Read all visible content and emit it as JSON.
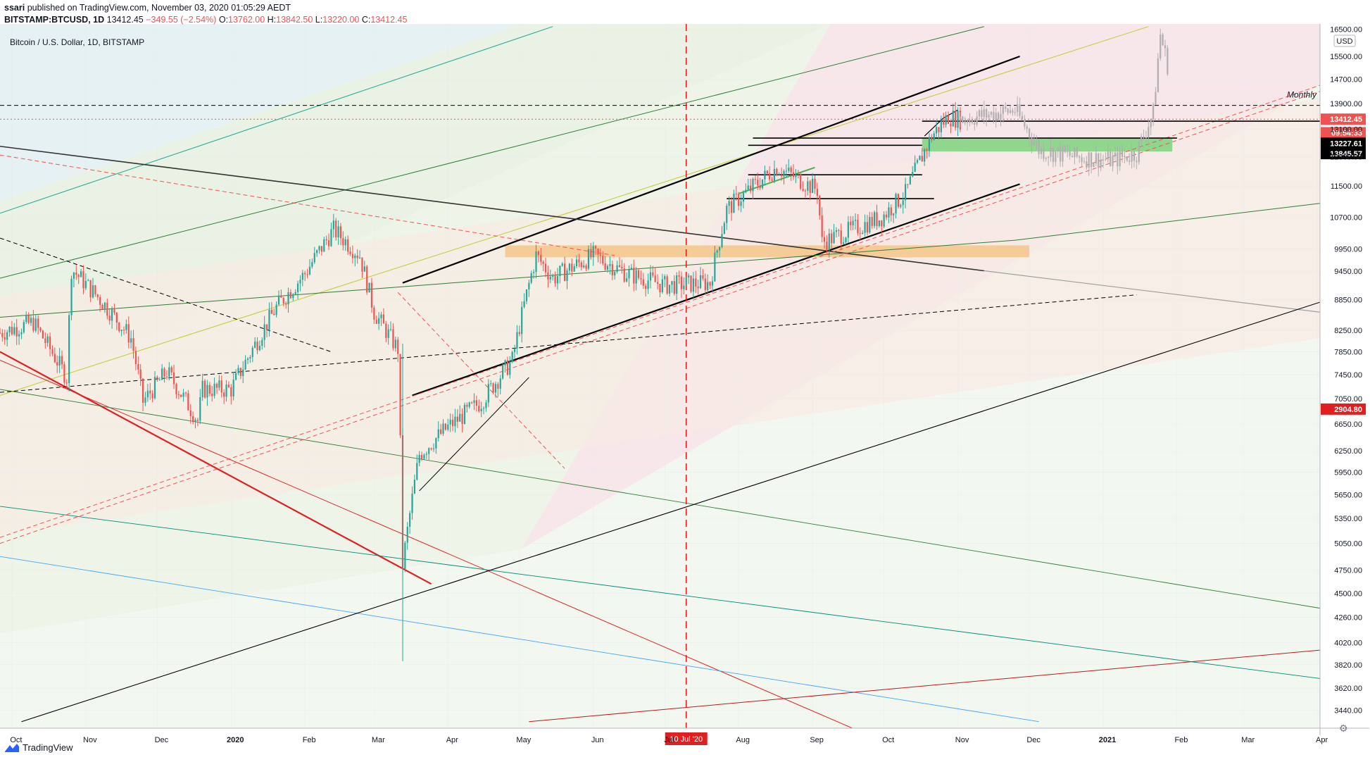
{
  "header": {
    "user": "ssari",
    "published": "published on TradingView.com, November 03, 2020 01:05:29 AEDT",
    "symbol": "BITSTAMP:BTCUSD, 1D",
    "last": "13412.45",
    "change": "−349.55 (−2.54%)",
    "o_label": "O:",
    "o": "13762.00",
    "h_label": "H:",
    "h": "13842.50",
    "l_label": "L:",
    "l": "13220.00",
    "c_label": "C:",
    "c": "13412.45"
  },
  "footer": {
    "brand": "TradingView",
    "logo_icon": "tradingview-logo-icon",
    "settings_icon": "gear-icon"
  },
  "colors": {
    "up": "#26a69a",
    "down": "#ef5350",
    "projection": "#b0aeb0",
    "red_dashed": "#ef5350",
    "black": "#000000"
  },
  "chart_data": {
    "type": "candlestick",
    "title": "Bitcoin / U.S. Dollar, 1D, BITSTAMP",
    "ylabel": "USD",
    "y_scale": "log",
    "ylim": [
      3300,
      16700
    ],
    "x_tick_labels": [
      "Oct",
      "Nov",
      "Dec",
      "2020",
      "Feb",
      "Mar",
      "Apr",
      "May",
      "Jun",
      "Jul",
      "Aug",
      "Sep",
      "Oct",
      "Nov",
      "Dec",
      "2021",
      "Feb",
      "Mar",
      "Apr"
    ],
    "y_tick_labels": [
      16500,
      15500,
      14700,
      13900,
      13100,
      12300,
      11500,
      10700,
      9950,
      9450,
      8850,
      8250,
      7850,
      7450,
      7050,
      6650,
      6250,
      5950,
      5650,
      5350,
      5050,
      4750,
      4500,
      4260,
      4020,
      3820,
      3620,
      3440
    ],
    "badges": [
      {
        "label": "USD",
        "kind": "unit"
      },
      {
        "value": "13412.45",
        "kind": "last_price"
      },
      {
        "value": "09:54:33",
        "kind": "countdown"
      },
      {
        "value": "13227.61",
        "kind": "level"
      },
      {
        "value": "13845.57",
        "kind": "level"
      },
      {
        "value": "2904.80",
        "kind": "level"
      }
    ],
    "marker_label": "10 Jul '20",
    "annotations": [
      "Monthly"
    ],
    "price_series": {
      "name": "BTCUSD daily",
      "anchors": [
        [
          "2019-09-26",
          8200
        ],
        [
          "2019-10-10",
          8400
        ],
        [
          "2019-10-24",
          7400
        ],
        [
          "2019-10-26",
          9500
        ],
        [
          "2019-11-08",
          8800
        ],
        [
          "2019-11-20",
          8100
        ],
        [
          "2019-11-25",
          7000
        ],
        [
          "2019-12-05",
          7500
        ],
        [
          "2019-12-18",
          6700
        ],
        [
          "2019-12-20",
          7200
        ],
        [
          "2020-01-01",
          7200
        ],
        [
          "2020-01-10",
          7900
        ],
        [
          "2020-01-20",
          8700
        ],
        [
          "2020-02-01",
          9400
        ],
        [
          "2020-02-13",
          10400
        ],
        [
          "2020-02-24",
          9800
        ],
        [
          "2020-03-01",
          8600
        ],
        [
          "2020-03-08",
          8100
        ],
        [
          "2020-03-11",
          7900
        ],
        [
          "2020-03-13",
          4800
        ],
        [
          "2020-03-20",
          6200
        ],
        [
          "2020-04-01",
          6600
        ],
        [
          "2020-04-15",
          7000
        ],
        [
          "2020-04-28",
          7700
        ],
        [
          "2020-05-08",
          9800
        ],
        [
          "2020-05-15",
          9300
        ],
        [
          "2020-06-01",
          9800
        ],
        [
          "2020-06-15",
          9400
        ],
        [
          "2020-07-01",
          9150
        ],
        [
          "2020-07-20",
          9200
        ],
        [
          "2020-07-27",
          10900
        ],
        [
          "2020-08-17",
          12000
        ],
        [
          "2020-09-03",
          11400
        ],
        [
          "2020-09-05",
          10100
        ],
        [
          "2020-09-30",
          10700
        ],
        [
          "2020-10-10",
          11300
        ],
        [
          "2020-10-21",
          12900
        ],
        [
          "2020-10-28",
          13500
        ],
        [
          "2020-11-02",
          13400
        ]
      ]
    },
    "projection_series": {
      "name": "projection",
      "anchors": [
        [
          "2020-11-02",
          13400
        ],
        [
          "2020-11-25",
          13700
        ],
        [
          "2020-12-05",
          12500
        ],
        [
          "2020-12-20",
          12300
        ],
        [
          "2021-01-05",
          12200
        ],
        [
          "2021-01-15",
          12400
        ],
        [
          "2021-01-22",
          13600
        ],
        [
          "2021-01-25",
          16300
        ],
        [
          "2021-01-28",
          15200
        ]
      ]
    },
    "horizontal_zones": [
      {
        "from": "2020-04-25",
        "to": "2020-12-01",
        "low": 9760,
        "high": 10030,
        "color": "#f5c68a"
      },
      {
        "from": "2020-10-17",
        "to": "2021-01-30",
        "low": 12450,
        "high": 12850,
        "color": "#7ed27e"
      }
    ],
    "horizontal_levels": [
      {
        "from": "2020-10-17",
        "to": "2021-04-02",
        "value": 13350,
        "color": "#000000"
      },
      {
        "from": "2020-08-05",
        "to": "2020-10-17",
        "value": 12630,
        "color": "#000000"
      },
      {
        "from": "2020-08-07",
        "to": "2021-02-01",
        "value": 12840,
        "color": "#000000"
      },
      {
        "from": "2020-07-27",
        "to": "2020-10-22",
        "value": 11170,
        "color": "#000000"
      },
      {
        "from": "2020-08-05",
        "to": "2020-10-17",
        "value": 11800,
        "color": "#000000"
      }
    ],
    "trend_lines": [
      {
        "from": [
          "2020-03-13",
          9200
        ],
        "to": [
          "2020-11-27",
          15500
        ],
        "color": "#000000",
        "width": 2.2
      },
      {
        "from": [
          "2020-03-17",
          7100
        ],
        "to": [
          "2020-11-27",
          11550
        ],
        "color": "#000000",
        "width": 2.2
      },
      {
        "from": [
          "2019-09-26",
          12600
        ],
        "to": [
          "2020-11-12",
          9460
        ],
        "color": "#333333",
        "width": 1.6
      },
      {
        "from": [
          "2020-11-12",
          9460
        ],
        "to": [
          "2021-04-02",
          8600
        ],
        "color": "#9e9e9e",
        "width": 1.2
      },
      {
        "from": [
          "2019-09-26",
          7850
        ],
        "to": [
          "2020-03-25",
          4600
        ],
        "color": "#e02020",
        "width": 2.2
      },
      {
        "from": [
          "2019-09-26",
          7700
        ],
        "to": [
          "2020-10-28",
          3000
        ],
        "color": "#e02020",
        "width": 1.0
      },
      {
        "from": [
          "2019-09-26",
          7200
        ],
        "to": [
          "2021-04-02",
          4350
        ],
        "color": "#2e7d32",
        "width": 0.9
      },
      {
        "from": [
          "2019-09-26",
          5500
        ],
        "to": [
          "2021-04-02",
          3700
        ],
        "color": "#00897b",
        "width": 0.9
      },
      {
        "from": [
          "2019-09-26",
          4900
        ],
        "to": [
          "2020-12-05",
          3350
        ],
        "color": "#42a5f5",
        "width": 0.9
      },
      {
        "from": [
          "2019-10-05",
          3350
        ],
        "to": [
          "2021-04-02",
          8800
        ],
        "color": "#000000",
        "width": 1.1
      },
      {
        "from": [
          "2019-09-26",
          8500
        ],
        "to": [
          "2020-11-25",
          10150
        ],
        "color": "#2e7d32",
        "width": 1.0
      },
      {
        "from": [
          "2020-11-25",
          10150
        ],
        "to": [
          "2021-04-02",
          11050
        ],
        "color": "#2e7d32",
        "width": 1.0
      },
      {
        "from": [
          "2020-05-05",
          3350
        ],
        "to": [
          "2021-04-02",
          3950
        ],
        "color": "#b71c1c",
        "width": 1.0
      },
      {
        "from": [
          "2019-09-26",
          5050
        ],
        "to": [
          "2021-04-02",
          14300
        ],
        "color": "#ef5350",
        "width": 1.0,
        "dash": true
      },
      {
        "from": [
          "2019-09-26",
          5120
        ],
        "to": [
          "2021-04-02",
          14500
        ],
        "color": "#ef5350",
        "width": 1.0,
        "dash": true
      },
      {
        "from": [
          "2019-09-26",
          12350
        ],
        "to": [
          "2020-06-10",
          9800
        ],
        "color": "#ef5350",
        "width": 1.0,
        "dash": true
      },
      {
        "from": [
          "2020-03-11",
          9000
        ],
        "to": [
          "2020-05-20",
          6000
        ],
        "color": "#ef5350",
        "width": 1.0,
        "dash": true
      },
      {
        "from": [
          "2019-09-26",
          10200
        ],
        "to": [
          "2020-02-12",
          7850
        ],
        "color": "#000000",
        "width": 1.0,
        "dash": true
      },
      {
        "from": [
          "2019-09-26",
          7150
        ],
        "to": [
          "2021-01-15",
          8950
        ],
        "color": "#000000",
        "width": 1.0,
        "dash": true
      },
      {
        "from": [
          "2020-03-20",
          5700
        ],
        "to": [
          "2020-05-05",
          7400
        ],
        "color": "#000000",
        "width": 1.0
      },
      {
        "from": [
          "2020-08-01",
          11300
        ],
        "to": [
          "2020-09-02",
          12000
        ],
        "color": "#4caf50",
        "width": 2.0
      },
      {
        "from": [
          "2020-10-18",
          12900
        ],
        "to": [
          "2020-10-26",
          13450
        ],
        "color": "#000000",
        "width": 1.2
      },
      {
        "from": [
          "2020-10-26",
          13450
        ],
        "to": [
          "2020-11-01",
          13700
        ],
        "color": "#000000",
        "width": 1.2
      }
    ],
    "fan_lines": [
      {
        "from": [
          "2019-09-26",
          9300
        ],
        "to": [
          "2020-11-12",
          16600
        ],
        "color": "#2e7d32"
      },
      {
        "from": [
          "2019-09-26",
          10800
        ],
        "to": [
          "2020-05-15",
          16600
        ],
        "color": "#26a69a"
      },
      {
        "from": [
          "2019-09-26",
          7100
        ],
        "to": [
          "2021-01-20",
          16600
        ],
        "color": "#c0ca33"
      }
    ],
    "dashed_levels": [
      {
        "value": 13845,
        "color": "#000000"
      },
      {
        "value": 13412,
        "color": "#ef5350"
      }
    ],
    "vertical_marker": {
      "date": "2020-07-10",
      "color": "#e02020"
    }
  }
}
